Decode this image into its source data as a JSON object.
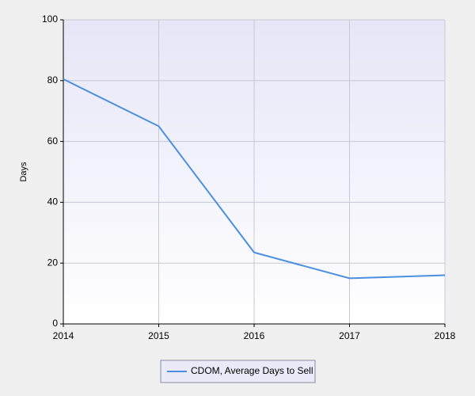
{
  "chart_data": {
    "type": "line",
    "x": [
      2014,
      2015,
      2016,
      2017,
      2018
    ],
    "series": [
      {
        "name": "CDOM, Average Days to Sell",
        "color": "#4a8fe0",
        "values": [
          80.5,
          65,
          23.5,
          15,
          16
        ]
      }
    ],
    "xlim": [
      2014,
      2018
    ],
    "xticks": [
      2014,
      2015,
      2016,
      2017,
      2018
    ],
    "ylim": [
      0,
      100
    ],
    "yticks": [
      0,
      20,
      40,
      60,
      80,
      100
    ],
    "ylabel": "Days",
    "grid": true,
    "legend": "bottom"
  }
}
